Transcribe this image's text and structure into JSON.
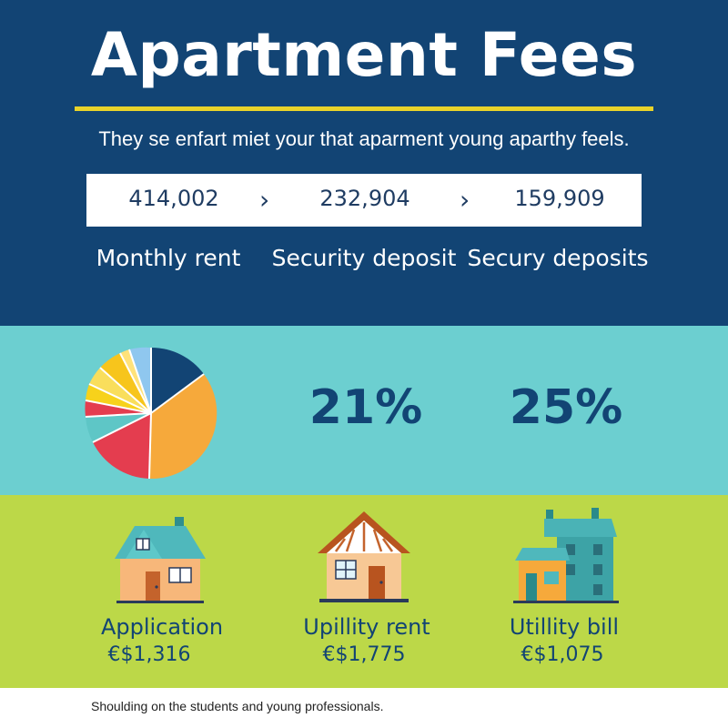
{
  "header": {
    "title": "Apartment Fees",
    "subtitle": "They se enfart miet your that aparment young aparthy feels."
  },
  "stats_bar": {
    "values": [
      "414,002",
      "232,904",
      "159,909"
    ],
    "separator_icon": "chevron-right-icon"
  },
  "fee_labels": [
    "Monthly rent",
    "Security deposit",
    "Secury deposits"
  ],
  "percentages": [
    "21%",
    "25%"
  ],
  "cost_items": [
    {
      "label": "Application",
      "price": "€$1,316",
      "icon": "house-icon"
    },
    {
      "label": "Upillity rent",
      "price": "€$1,775",
      "icon": "cottage-icon"
    },
    {
      "label": "Utillity bill",
      "price": "€$1,075",
      "icon": "apartment-building-icon"
    }
  ],
  "footnote": "Shoulding on the students and young professionals.",
  "colors": {
    "navy": "#124474",
    "teal": "#6ccfd0",
    "lime": "#bcd848",
    "accent_yellow": "#e9d32a"
  }
}
